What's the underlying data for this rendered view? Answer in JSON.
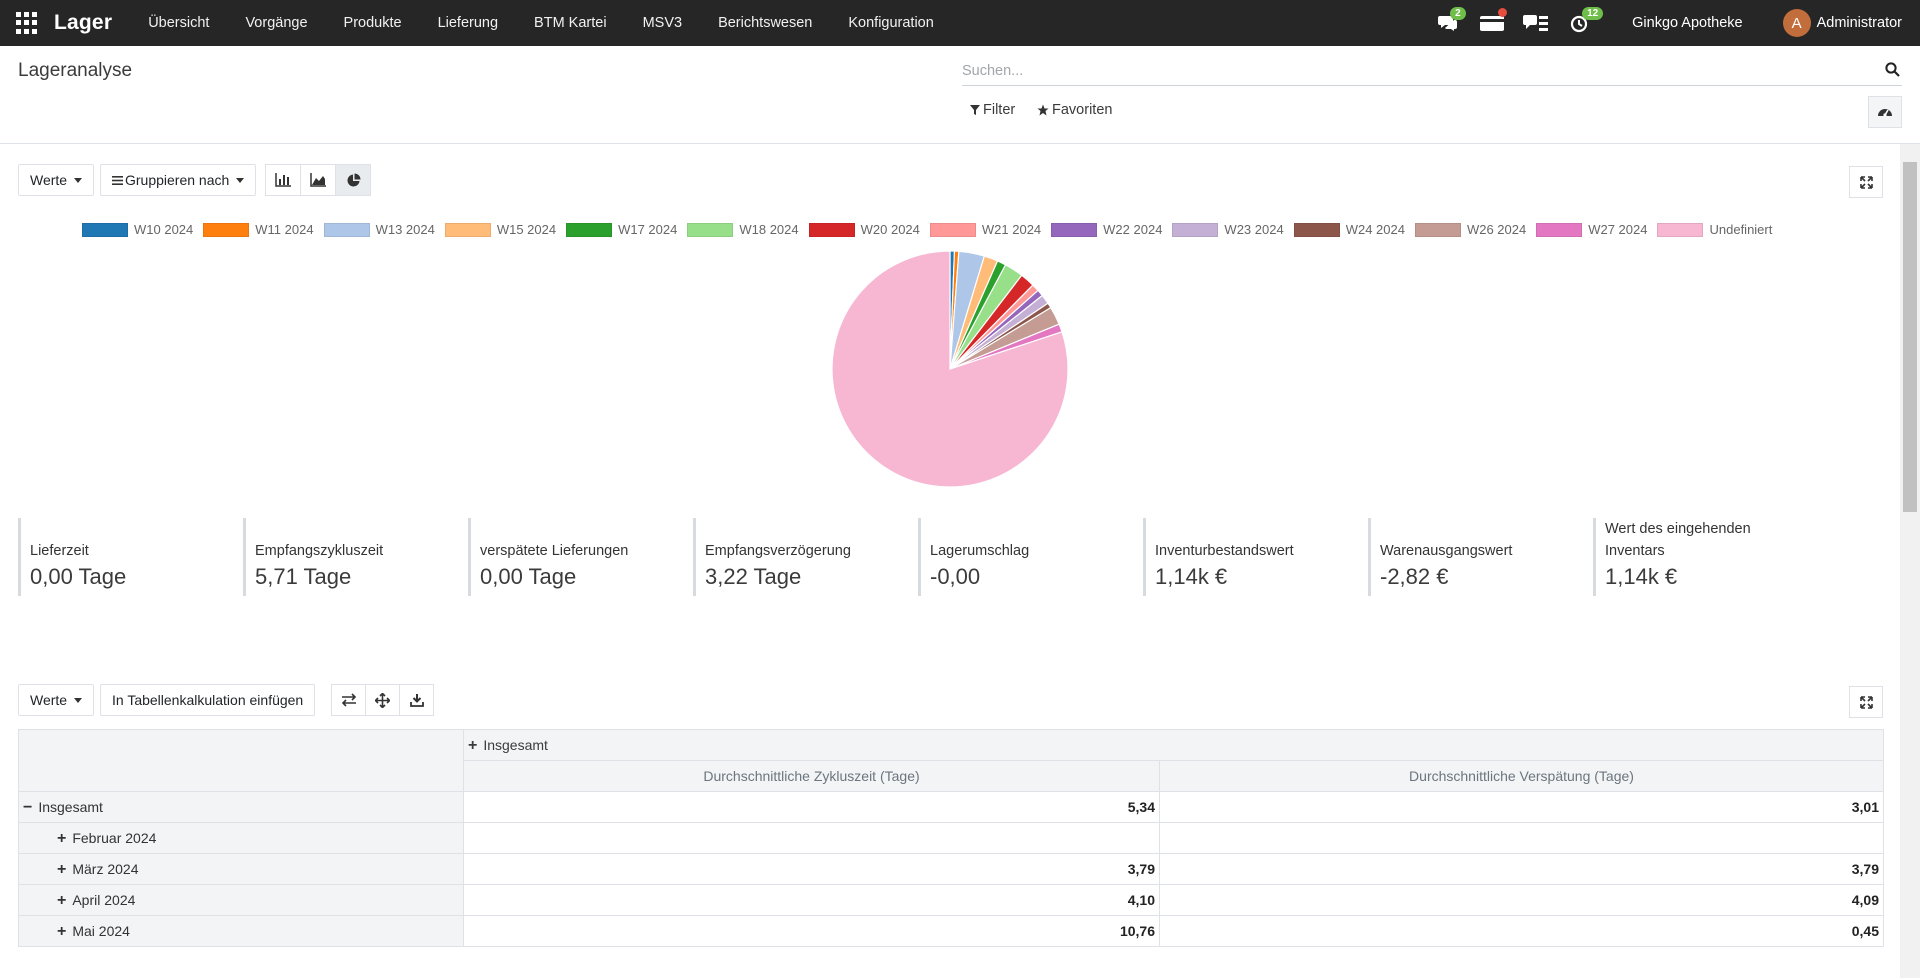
{
  "navbar": {
    "brand": "Lager",
    "menu": [
      "Übersicht",
      "Vorgänge",
      "Produkte",
      "Lieferung",
      "BTM Kartei",
      "MSV3",
      "Berichtswesen",
      "Konfiguration"
    ],
    "messages_badge": "2",
    "activities_badge": "12",
    "company": "Ginkgo Apotheke",
    "avatar_letter": "A",
    "user": "Administrator"
  },
  "control": {
    "title": "Lageranalyse",
    "search_placeholder": "Suchen...",
    "filter_label": "Filter",
    "favorites_label": "Favoriten"
  },
  "graph_toolbar": {
    "measures_label": "Werte",
    "group_by_label": "Gruppieren nach"
  },
  "chart_data": {
    "type": "pie",
    "legend_position": "top",
    "categories": [
      "W10 2024",
      "W11 2024",
      "W13 2024",
      "W15 2024",
      "W17 2024",
      "W18 2024",
      "W20 2024",
      "W21 2024",
      "W22 2024",
      "W23 2024",
      "W24 2024",
      "W26 2024",
      "W27 2024",
      "Undefiniert"
    ],
    "values": [
      0.6,
      0.6,
      3.5,
      1.9,
      1.2,
      2.6,
      2.0,
      1.0,
      0.9,
      1.3,
      0.7,
      2.5,
      1.1,
      80.1
    ],
    "colors": [
      "#1f77b4",
      "#ff7f0e",
      "#aec7e8",
      "#ffbb78",
      "#2ca02c",
      "#98df8a",
      "#d62728",
      "#ff9896",
      "#9467bd",
      "#c5b0d5",
      "#8c564b",
      "#c49c94",
      "#e377c2",
      "#f7b6d2"
    ]
  },
  "kpis": [
    {
      "label": "Lieferzeit",
      "value": "0,00 Tage"
    },
    {
      "label": "Empfangszykluszeit",
      "value": "5,71 Tage"
    },
    {
      "label": "verspätete Lieferungen",
      "value": "0,00 Tage"
    },
    {
      "label": "Empfangsverzögerung",
      "value": "3,22 Tage"
    },
    {
      "label": "Lagerumschlag",
      "value": "-0,00"
    },
    {
      "label": "Inventurbestandswert",
      "value": "1,14k €"
    },
    {
      "label": "Warenausgangswert",
      "value": "-2,82 €"
    },
    {
      "label": "Wert des eingehenden Inventars",
      "value": "1,14k €"
    }
  ],
  "pivot_toolbar": {
    "measures_label": "Werte",
    "spreadsheet_label": "In Tabellenkalkulation einfügen"
  },
  "pivot": {
    "col_header": "Insgesamt",
    "measures": [
      "Durchschnittliche Zykluszeit (Tage)",
      "Durchschnittliche Verspätung (Tage)"
    ],
    "total_label": "Insgesamt",
    "total_values": [
      "5,34",
      "3,01"
    ],
    "rows": [
      {
        "label": "Februar 2024",
        "values": [
          "",
          ""
        ]
      },
      {
        "label": "März 2024",
        "values": [
          "3,79",
          "3,79"
        ]
      },
      {
        "label": "April 2024",
        "values": [
          "4,10",
          "4,09"
        ]
      },
      {
        "label": "Mai 2024",
        "values": [
          "10,76",
          "0,45"
        ]
      }
    ]
  }
}
